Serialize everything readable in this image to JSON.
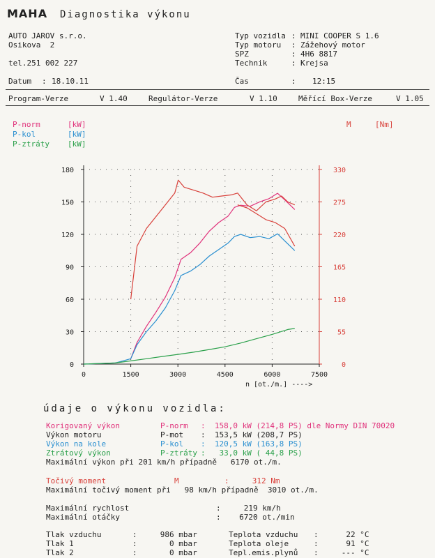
{
  "header": {
    "logo": "MAHA",
    "title": "Diagnostika výkonu"
  },
  "company": {
    "name": "AUTO JAROV s.r.o.",
    "street": "Osikova  2",
    "phone": "tel.251 002 227"
  },
  "vehicle": {
    "type_label": "Typ vozidla",
    "type_value": "MINI COOPER S 1.6",
    "engine_label": "Typ motoru",
    "engine_value": "Zážehový motor",
    "spz_label": "SPZ",
    "spz_value": "4H6 8817",
    "tech_label": "Technik",
    "tech_value": "Krejsa"
  },
  "date": {
    "label": "Datum",
    "value": "18.10.11",
    "time_label": "Čas",
    "time_value": "12:15"
  },
  "versions": {
    "program_label": "Program-Verze",
    "program_value": "V 1.40",
    "regulator_label": "Regulátor-Verze",
    "regulator_value": "V 1.10",
    "box_label": "Měřící Box-Verze",
    "box_value": "V 1.05"
  },
  "legend": {
    "p_norm": "P-norm",
    "p_norm_unit": "[kW]",
    "p_kol": "P-kol",
    "p_kol_unit": "[kW]",
    "p_ztraty": "P-ztráty",
    "p_ztraty_unit": "[kW]",
    "torque": "M",
    "torque_unit": "[Nm]"
  },
  "colors": {
    "p_norm": "#e0307a",
    "p_kol": "#2a8fd0",
    "p_ztraty": "#2aa04a",
    "torque": "#d8403a"
  },
  "chart_data": {
    "type": "line",
    "xlabel": "n [ot./m.] ---->",
    "x_ticks": [
      "0",
      "1500",
      "3000",
      "4500",
      "6000",
      "7500"
    ],
    "y_left_ticks": [
      "0",
      "30",
      "60",
      "90",
      "120",
      "150",
      "180"
    ],
    "y_right_ticks": [
      "0",
      "55",
      "110",
      "165",
      "220",
      "275",
      "330"
    ],
    "xlim": [
      0,
      7500
    ],
    "ylim_left": [
      0,
      180
    ],
    "ylim_right": [
      0,
      330
    ],
    "series": [
      {
        "name": "P-norm",
        "unit": "kW",
        "axis": "left",
        "color": "#e0307a",
        "x": [
          1500,
          1700,
          2000,
          2300,
          2600,
          2900,
          3100,
          3400,
          3700,
          4000,
          4300,
          4600,
          4800,
          5000,
          5300,
          5600,
          5900,
          6170,
          6400,
          6720
        ],
        "y": [
          5,
          20,
          35,
          48,
          62,
          80,
          97,
          103,
          112,
          123,
          131,
          137,
          145,
          147,
          146,
          150,
          153,
          158,
          152,
          143
        ]
      },
      {
        "name": "P-kol",
        "unit": "kW",
        "axis": "left",
        "color": "#2a8fd0",
        "x": [
          0,
          1000,
          1500,
          1700,
          2000,
          2300,
          2600,
          2900,
          3100,
          3400,
          3700,
          4000,
          4300,
          4600,
          4800,
          5000,
          5300,
          5600,
          5900,
          6170,
          6400,
          6720
        ],
        "y": [
          0,
          1,
          5,
          18,
          30,
          40,
          52,
          68,
          82,
          86,
          92,
          100,
          106,
          112,
          118,
          120,
          117,
          118,
          116,
          120.5,
          114,
          105
        ]
      },
      {
        "name": "P-ztráty",
        "unit": "kW",
        "axis": "left",
        "color": "#2aa04a",
        "x": [
          0,
          1000,
          1500,
          2000,
          2500,
          3000,
          3500,
          4000,
          4500,
          5000,
          5500,
          6000,
          6500,
          6720
        ],
        "y": [
          0,
          1,
          3,
          5,
          7,
          9,
          11,
          13.5,
          16,
          19.5,
          23.5,
          27.5,
          32,
          33
        ]
      },
      {
        "name": "M",
        "unit": "Nm",
        "axis": "right",
        "color": "#d8403a",
        "x": [
          1500,
          1700,
          2000,
          2300,
          2600,
          2900,
          3010,
          3200,
          3500,
          3800,
          4100,
          4400,
          4700,
          4900,
          5200,
          5500,
          5800,
          6100,
          6300,
          6500,
          6720
        ],
        "y": [
          110,
          200,
          230,
          250,
          270,
          290,
          312,
          300,
          295,
          290,
          283,
          285,
          287,
          290,
          270,
          260,
          275,
          280,
          285,
          275,
          270
        ]
      },
      {
        "name": "M-lower",
        "unit": "Nm",
        "axis": "right",
        "color": "#d8403a",
        "x": [
          4900,
          5200,
          5500,
          5800,
          6100,
          6400,
          6720
        ],
        "y": [
          270,
          265,
          255,
          245,
          240,
          230,
          200
        ]
      }
    ]
  },
  "section": {
    "title": "údaje o výkonu vozidla:"
  },
  "results": {
    "row1_label": "Korigovaný výkon",
    "row1_sym": "P-norm",
    "row1_value": ":  158,0 kW (214,8 PS) dle Normy DIN 70020",
    "row2_label": "Výkon motoru",
    "row2_sym": "P-mot",
    "row2_value": ":  153,5 kW (208,7 PS)",
    "row3_label": "Výkon na kole",
    "row3_sym": "P-kol",
    "row3_value": ":  120,5 kW (163,8 PS)",
    "row4_label": "Ztrátový výkon",
    "row4_sym": "P-ztráty",
    "row4_value": ":   33,0 kW ( 44,8 PS)",
    "max_power": "Maximální výkon při 201 km/h případně   6170 ot./m.",
    "torque_label": "Točivý moment",
    "torque_sym": "M",
    "torque_value": ":     312 Nm",
    "max_torque": "Maximální točivý moment při   98 km/h případně  3010 ot./m.",
    "max_speed_label": "Maximální rychlost",
    "max_speed_value": ":     219 km/h",
    "max_rpm_label": "Maximální otáčky",
    "max_rpm_value": ":    6720 ot./min"
  },
  "conditions": {
    "air_pressure_label": "Tlak vzduchu",
    "air_pressure_value": ":     986 mbar",
    "pressure1_label": "Tlak 1",
    "pressure1_value": ":       0 mbar",
    "pressure2_label": "Tlak 2",
    "pressure2_value": ":       0 mbar",
    "air_temp_label": "Teplota vzduchu",
    "air_temp_value": ":      22 °C",
    "oil_temp_label": "Teplota oleje",
    "oil_temp_value": ":      91 °C",
    "emis_temp_label": "Tepl.emis.plynů",
    "emis_temp_value": ":     --- °C"
  }
}
